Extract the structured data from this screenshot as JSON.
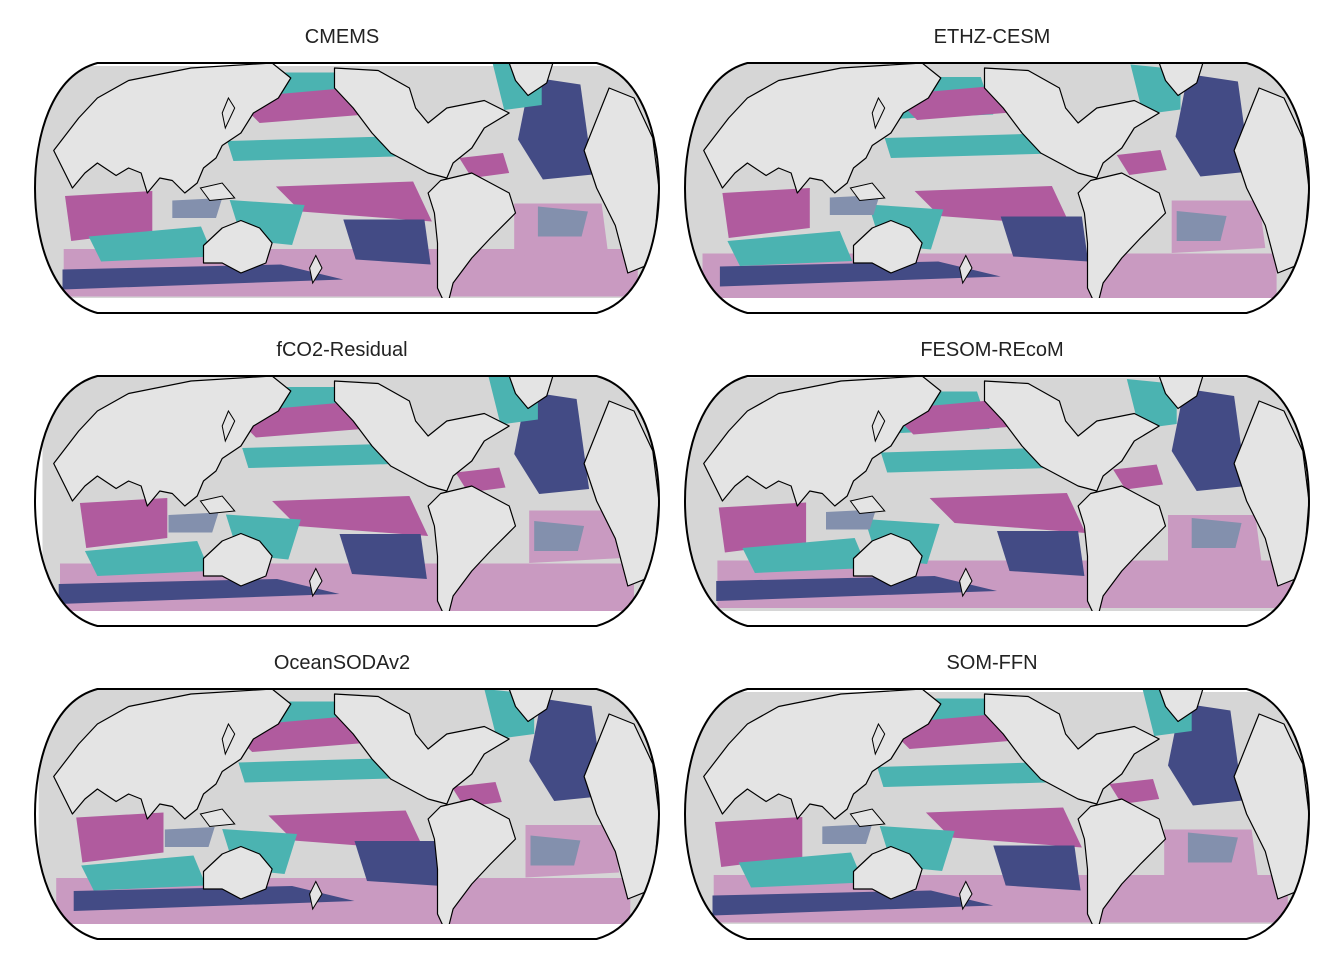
{
  "figure": {
    "panels": [
      {
        "id": "cmems",
        "title": "CMEMS"
      },
      {
        "id": "ethz",
        "title": "ETHZ-CESM"
      },
      {
        "id": "residual",
        "title": "fCO2-Residual"
      },
      {
        "id": "fesom",
        "title": "FESOM-REcoM"
      },
      {
        "id": "soda",
        "title": "OceanSODAv2"
      },
      {
        "id": "somffn",
        "title": "SOM-FFN"
      }
    ],
    "colors": {
      "land": "#e4e4e4",
      "ocean_light": "#d6d6d6",
      "magenta": "#b05b9e",
      "pink": "#c99ac1",
      "teal": "#4bb3b1",
      "slate": "#8390ad",
      "navy": "#434b85",
      "coast": "#000000"
    }
  }
}
